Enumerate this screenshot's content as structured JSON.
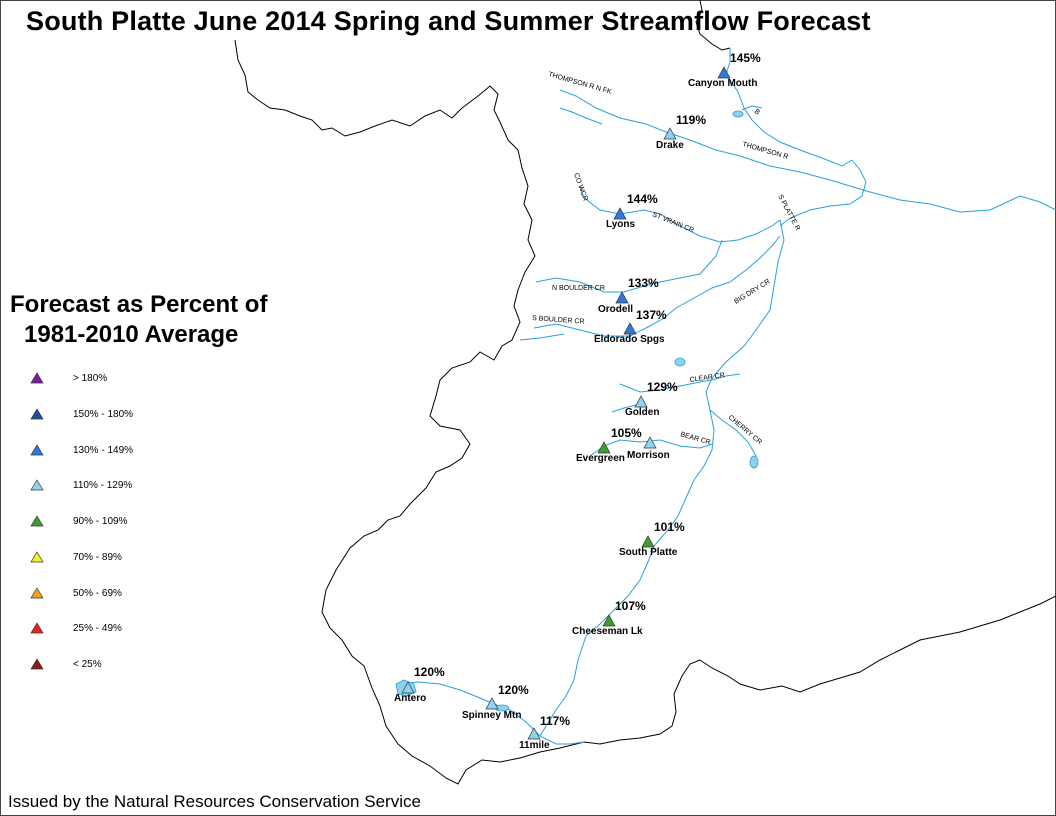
{
  "title": "South Platte June 2014 Spring and Summer Streamflow Forecast",
  "legend": {
    "title_line1": "Forecast as Percent of",
    "title_line2": "1981-2010 Average",
    "classes": [
      {
        "label": "> 180%",
        "color": "#7a1fa2"
      },
      {
        "label": "150% - 180%",
        "color": "#1f4e9c"
      },
      {
        "label": "130% - 149%",
        "color": "#2f78e0"
      },
      {
        "label": "110% - 129%",
        "color": "#8fd3f2"
      },
      {
        "label": "90% - 109%",
        "color": "#3aa02a"
      },
      {
        "label": "70% - 89%",
        "color": "#f5f020"
      },
      {
        "label": "50% - 69%",
        "color": "#f3a21c"
      },
      {
        "label": "25% - 49%",
        "color": "#e82020"
      },
      {
        "label": "< 25%",
        "color": "#8b1a1a"
      }
    ]
  },
  "stations": [
    {
      "name": "Canyon Mouth",
      "pct": "145%",
      "class": 2
    },
    {
      "name": "Drake",
      "pct": "119%",
      "class": 3
    },
    {
      "name": "Lyons",
      "pct": "144%",
      "class": 2
    },
    {
      "name": "Orodell",
      "pct": "133%",
      "class": 2
    },
    {
      "name": "Eldorado Spgs",
      "pct": "137%",
      "class": 2
    },
    {
      "name": "Golden",
      "pct": "129%",
      "class": 3
    },
    {
      "name": "Evergreen",
      "pct": "105%",
      "class": 4
    },
    {
      "name": "Morrison",
      "pct": "",
      "class": 3
    },
    {
      "name": "South Platte",
      "pct": "101%",
      "class": 4
    },
    {
      "name": "Cheeseman Lk",
      "pct": "107%",
      "class": 4
    },
    {
      "name": "Antero",
      "pct": "120%",
      "class": 3
    },
    {
      "name": "Spinney Mtn",
      "pct": "120%",
      "class": 3
    },
    {
      "name": "11mile",
      "pct": "117%",
      "class": 3
    }
  ],
  "rivers": [
    "THOMPSON R N FK",
    "THOMPSON R",
    "ST VRAIN CR",
    "N BOULDER CR",
    "S BOULDER CR",
    "BIG DRY CR",
    "S PLATTE R",
    "CLEAR CR",
    "BEAR CR",
    "CHERRY CR",
    "CO WCR",
    "B"
  ],
  "colors": {
    "river": "#2aa0dc",
    "boundary": "#000000",
    "lake": "#8fd0ef"
  },
  "footer": "Issued by the Natural Resources Conservation Service"
}
